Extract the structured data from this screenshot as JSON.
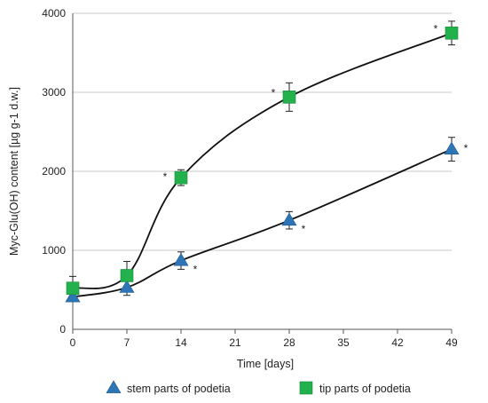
{
  "chart_data": {
    "type": "line",
    "xlabel": "Time [days]",
    "ylabel": "Myc-Glu(OH) content [µg g-1 d.w.]",
    "xlim": [
      0,
      49
    ],
    "ylim": [
      0,
      4000
    ],
    "x_ticks": [
      "0",
      "7",
      "14",
      "21",
      "28",
      "35",
      "42",
      "49"
    ],
    "y_ticks": [
      "0",
      "1000",
      "2000",
      "3000",
      "4000"
    ],
    "grid": "horizontal",
    "legend_position": "bottom",
    "series": [
      {
        "name": "stem parts of podetia",
        "marker": "triangle",
        "color": "#2E75B6",
        "x": [
          0,
          7,
          14,
          28,
          49
        ],
        "y": [
          410,
          530,
          870,
          1380,
          2280
        ],
        "err": [
          40,
          100,
          110,
          110,
          150
        ],
        "significance": [
          "",
          "",
          "*",
          "*",
          "*"
        ]
      },
      {
        "name": "tip parts of podetia",
        "marker": "square",
        "color": "#22B14C",
        "x": [
          0,
          7,
          14,
          28,
          49
        ],
        "y": [
          520,
          680,
          1920,
          2940,
          3750
        ],
        "err": [
          150,
          180,
          100,
          180,
          150
        ],
        "significance": [
          "",
          "",
          "*",
          "*",
          "*"
        ]
      }
    ]
  }
}
